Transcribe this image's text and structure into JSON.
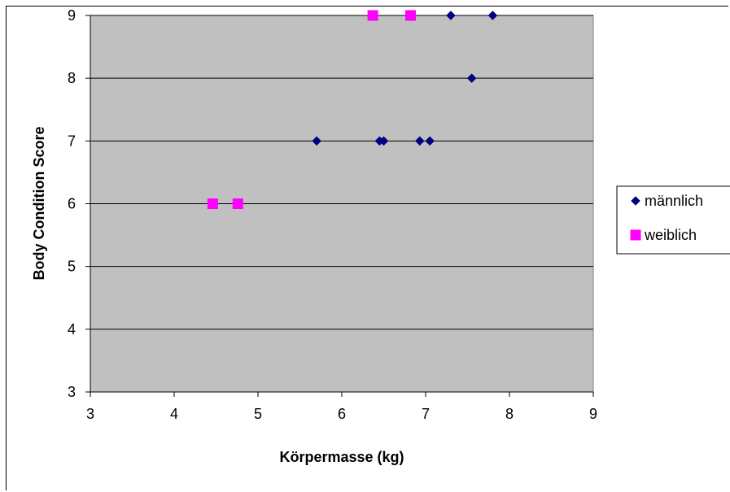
{
  "chart_data": {
    "type": "scatter",
    "xlabel": "Körpermasse (kg)",
    "ylabel": "Body Condition Score",
    "xlim": [
      3,
      9
    ],
    "ylim": [
      3,
      9
    ],
    "xticks": [
      3,
      4,
      5,
      6,
      7,
      8,
      9
    ],
    "yticks": [
      3,
      4,
      5,
      6,
      7,
      8,
      9
    ],
    "grid": "horizontal",
    "legend_position": "right",
    "plot_background": "#c0c0c0",
    "series": [
      {
        "name": "männlich",
        "marker": "diamond",
        "color": "#000080",
        "points": [
          [
            7.3,
            9
          ],
          [
            7.8,
            9
          ],
          [
            7.55,
            8
          ],
          [
            5.7,
            7
          ],
          [
            6.45,
            7
          ],
          [
            6.5,
            7
          ],
          [
            6.93,
            7
          ],
          [
            7.05,
            7
          ]
        ]
      },
      {
        "name": "weiblich",
        "marker": "square",
        "color": "#ff00ff",
        "points": [
          [
            6.37,
            9
          ],
          [
            6.82,
            9
          ],
          [
            4.46,
            6
          ],
          [
            4.76,
            6
          ]
        ]
      }
    ]
  }
}
